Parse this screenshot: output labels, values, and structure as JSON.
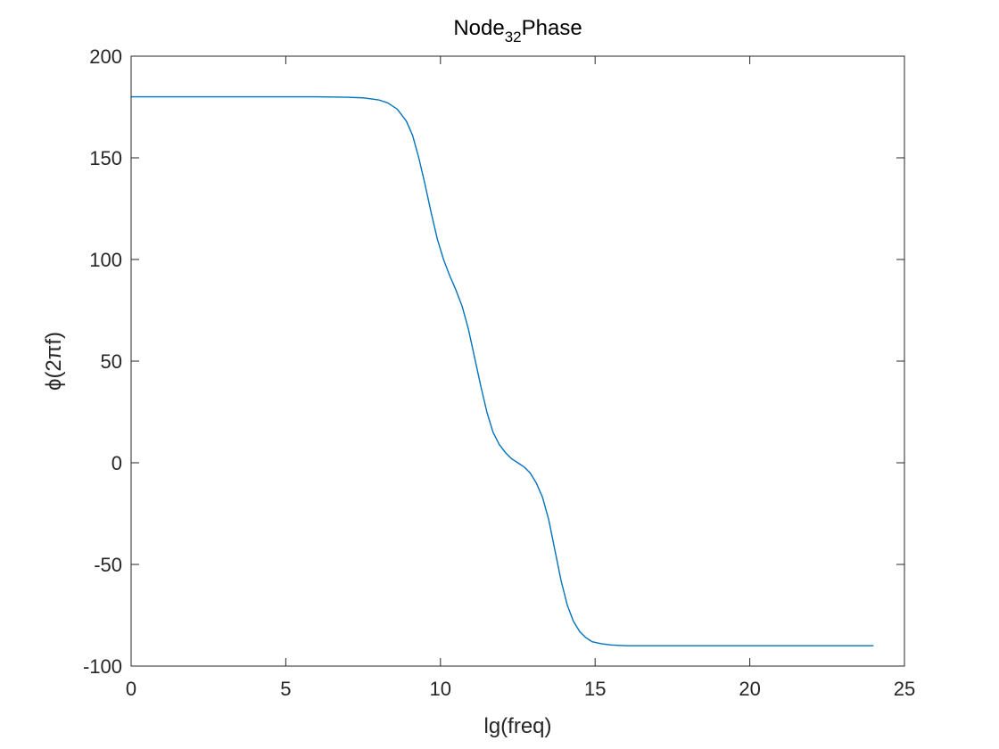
{
  "chart_data": {
    "type": "line",
    "title": {
      "prefix": "Node",
      "subscript": "32",
      "suffix": "Phase"
    },
    "xlabel": "lg(freq)",
    "ylabel": "ϕ(2πf)",
    "xlim": [
      0,
      25
    ],
    "ylim": [
      -100,
      200
    ],
    "xticks": [
      0,
      5,
      10,
      15,
      20,
      25
    ],
    "yticks": [
      -100,
      -50,
      0,
      50,
      100,
      150,
      200
    ],
    "xtick_labels": [
      "0",
      "5",
      "10",
      "15",
      "20",
      "25"
    ],
    "ytick_labels": [
      "-100",
      "-50",
      "0",
      "50",
      "100",
      "150",
      "200"
    ],
    "grid": false,
    "series": [
      {
        "color": "#0072bd",
        "x": [
          0,
          2,
          4,
          6,
          7,
          7.5,
          8,
          8.3,
          8.6,
          8.9,
          9.1,
          9.3,
          9.5,
          9.7,
          9.9,
          10.1,
          10.3,
          10.5,
          10.7,
          10.9,
          11.1,
          11.3,
          11.5,
          11.7,
          11.9,
          12.1,
          12.3,
          12.5,
          12.7,
          12.9,
          13.1,
          13.3,
          13.5,
          13.7,
          13.9,
          14.1,
          14.3,
          14.5,
          14.7,
          14.9,
          15.2,
          15.5,
          16,
          17,
          18,
          20,
          22,
          24
        ],
        "y": [
          180,
          180,
          180,
          180,
          179.8,
          179.5,
          178.5,
          177,
          174,
          168,
          161,
          150,
          137,
          123,
          110,
          100,
          92,
          85,
          77,
          66,
          52,
          38,
          25,
          15,
          9,
          5,
          2,
          0,
          -2,
          -5,
          -10,
          -17,
          -28,
          -43,
          -58,
          -70,
          -78,
          -83,
          -86,
          -88,
          -89,
          -89.6,
          -90,
          -90,
          -90,
          -90,
          -90,
          -90
        ]
      }
    ]
  }
}
